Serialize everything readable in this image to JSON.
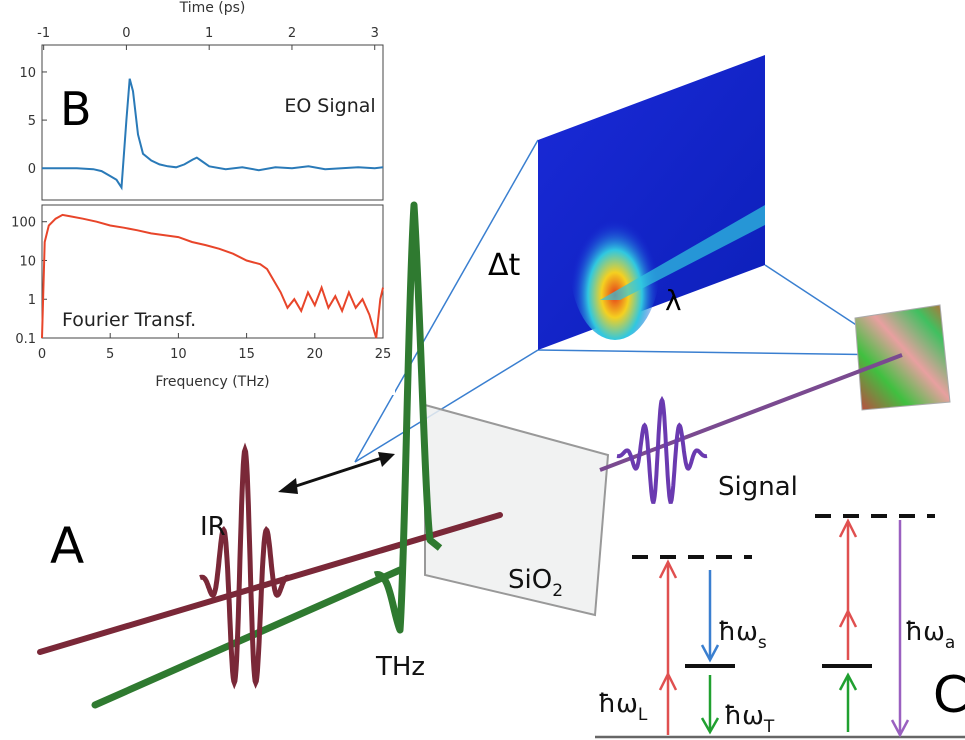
{
  "chart_data": [
    {
      "type": "line",
      "x_label": "Time (ps)",
      "annotation": "EO Signal",
      "color": "#2a7ab8",
      "x": [
        -1.02,
        -0.8,
        -0.6,
        -0.4,
        -0.3,
        -0.2,
        -0.12,
        -0.06,
        0,
        0.04,
        0.08,
        0.14,
        0.2,
        0.3,
        0.4,
        0.5,
        0.6,
        0.7,
        0.8,
        0.85,
        0.9,
        1.0,
        1.2,
        1.4,
        1.6,
        1.8,
        2.0,
        2.2,
        2.4,
        2.6,
        2.8,
        3.0,
        3.1
      ],
      "values": [
        0,
        0,
        0,
        -0.1,
        -0.3,
        -0.8,
        -1.2,
        -2,
        5,
        9.3,
        8,
        3.5,
        1.5,
        0.8,
        0.4,
        0.2,
        0.1,
        0.4,
        0.9,
        1.1,
        0.8,
        0.2,
        -0.1,
        0.1,
        -0.2,
        0.1,
        0,
        0.2,
        -0.1,
        0,
        0.1,
        0,
        0.1
      ],
      "xlim": [
        -1.02,
        3.1
      ],
      "xticks": [
        -1,
        0,
        1,
        2,
        3
      ],
      "ylim": [
        -3.3,
        12.8
      ],
      "yticks": [
        0,
        5,
        10
      ]
    },
    {
      "type": "line",
      "x_label": "Frequency (THz)",
      "annotation": "Fourier Transf.",
      "color": "#e8452a",
      "yscale": "log",
      "x": [
        0,
        0.2,
        0.5,
        1,
        1.5,
        2,
        3,
        4,
        5,
        6,
        7,
        8,
        9,
        10,
        11,
        12,
        13,
        14,
        15,
        16,
        16.5,
        17,
        17.5,
        18,
        18.5,
        19,
        19.5,
        20,
        20.5,
        21,
        21.5,
        22,
        22.5,
        23,
        23.5,
        24,
        24.5,
        24.8,
        25
      ],
      "values": [
        0.1,
        30,
        80,
        120,
        150,
        140,
        120,
        100,
        80,
        70,
        60,
        50,
        45,
        40,
        30,
        25,
        20,
        15,
        10,
        8,
        6,
        3,
        1.5,
        0.6,
        1,
        0.5,
        1.5,
        0.7,
        2,
        0.6,
        1.2,
        0.5,
        1.5,
        0.6,
        1,
        0.4,
        0.1,
        1,
        2
      ],
      "xlim": [
        0,
        25
      ],
      "xticks": [
        0,
        5,
        10,
        15,
        20,
        25
      ],
      "ylim": [
        0.1,
        270
      ],
      "yticks": [
        0.1,
        1,
        10,
        100
      ]
    }
  ],
  "diagram": {
    "panels": [
      "A",
      "B",
      "C"
    ],
    "labels": {
      "ir": "IR",
      "thz": "THz",
      "signal": "Signal",
      "dt": "Δt",
      "lambda": "λ"
    },
    "sio2": {
      "main": "SiO",
      "sub": "2"
    },
    "energies": [
      {
        "main": "ħω",
        "sub": "L"
      },
      {
        "main": "ħω",
        "sub": "s"
      },
      {
        "main": "ħω",
        "sub": "T"
      },
      {
        "main": "ħω",
        "sub": "a"
      }
    ]
  }
}
